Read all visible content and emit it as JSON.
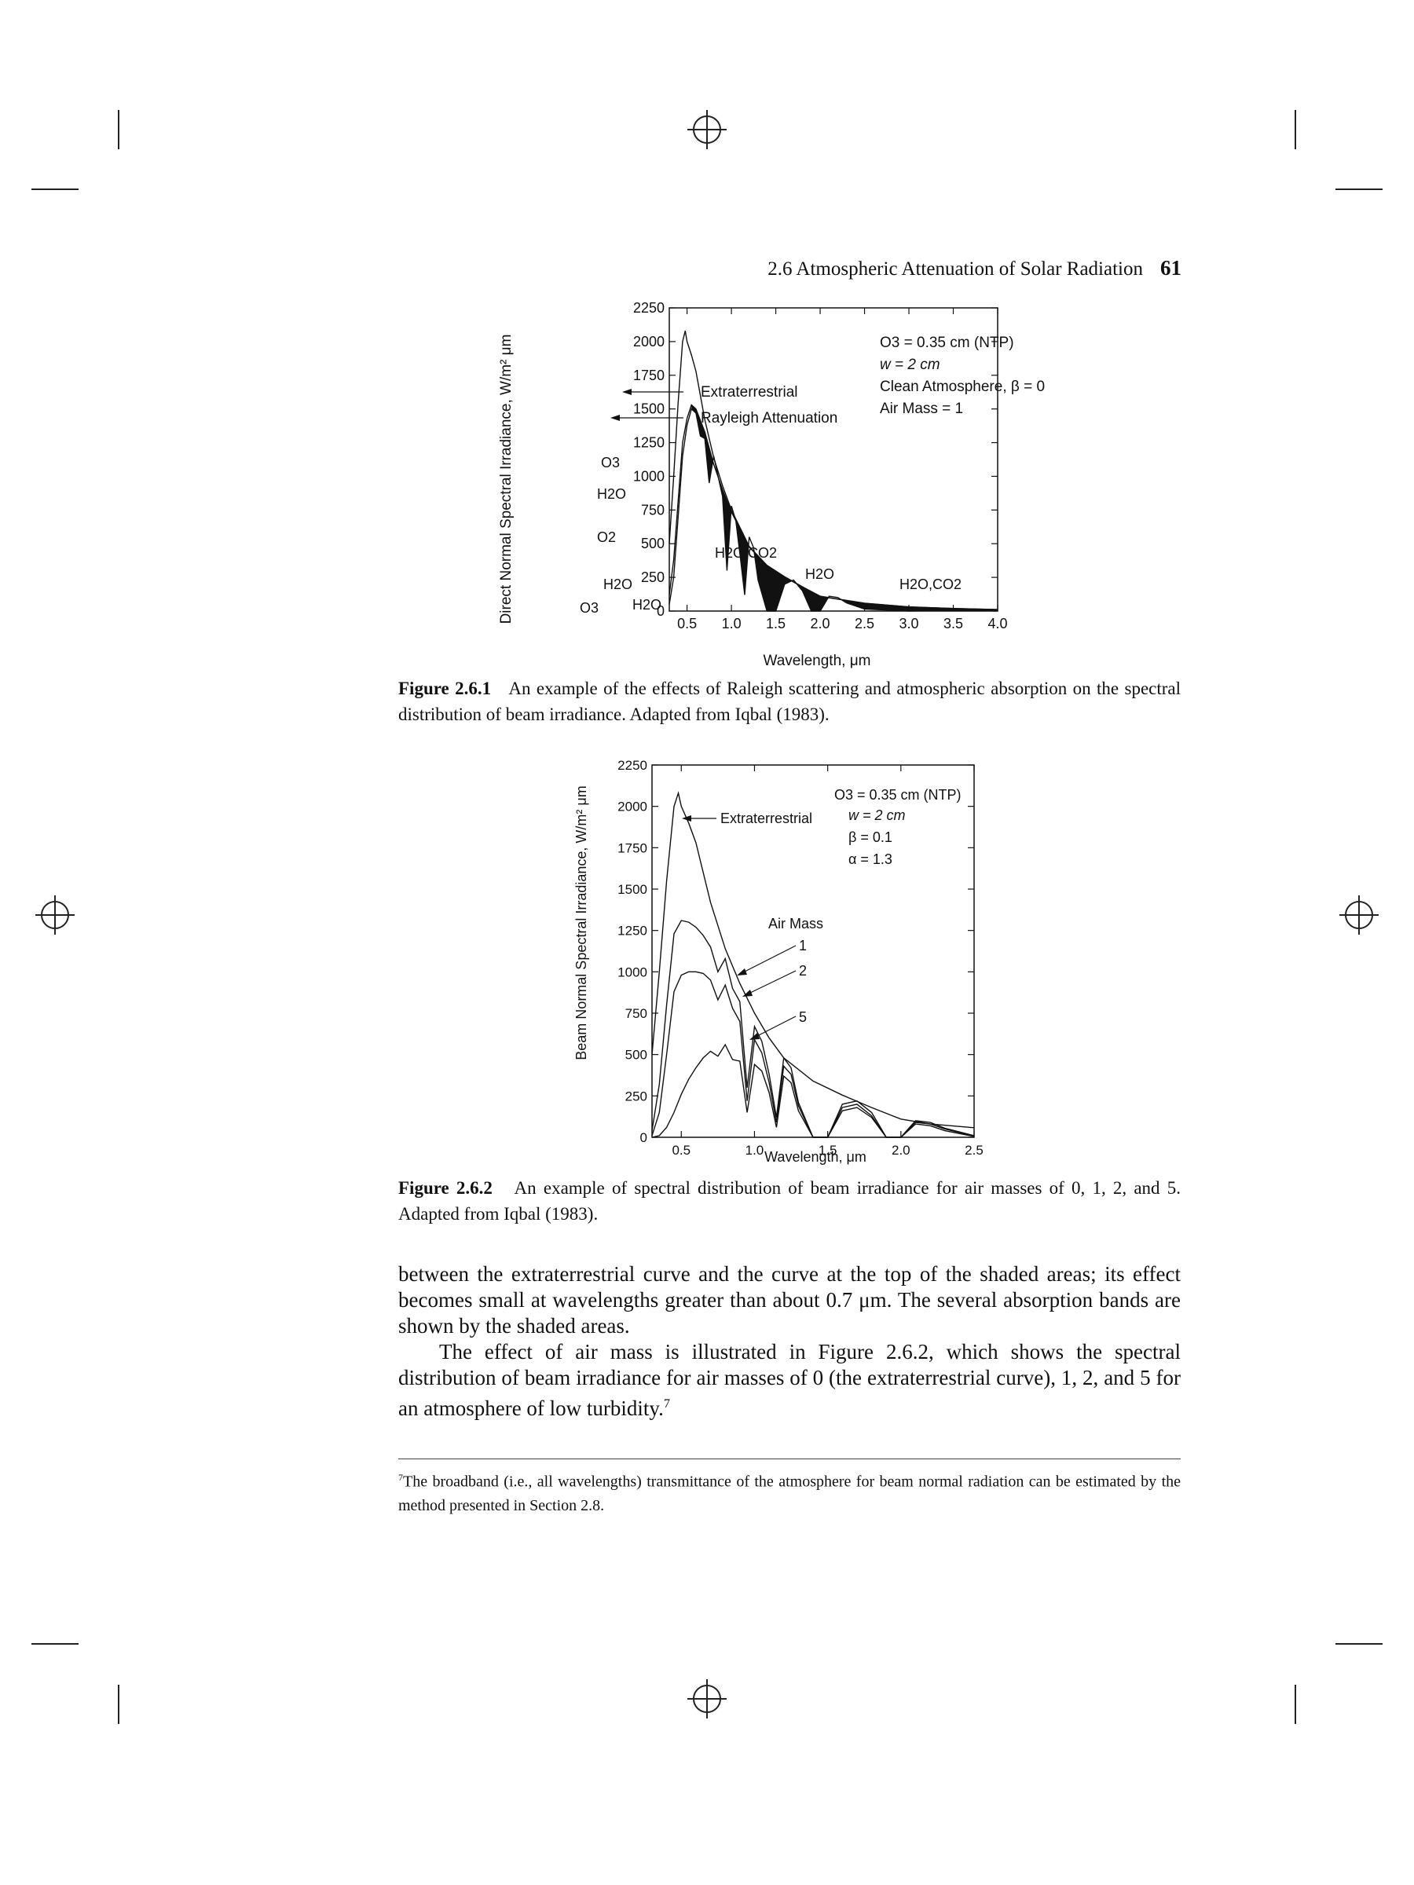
{
  "header": {
    "running_head": "2.6   Atmospheric Attenuation of Solar Radiation",
    "page_number": "61"
  },
  "figure1": {
    "caption_label": "Figure 2.6.1",
    "caption_text": "An example of the effects of Raleigh scattering and atmospheric absorption on the spectral distribution of beam irradiance. Adapted from Iqbal (1983).",
    "annotations": {
      "extraterrestrial": "Extraterrestrial",
      "rayleigh": "Rayleigh Attenuation",
      "legend_1": "O3 = 0.35 cm (NTP)",
      "legend_2": "w   = 2 cm",
      "legend_3": "Clean Atmosphere, β = 0",
      "legend_4": "Air Mass = 1"
    },
    "absorbers": [
      {
        "id": "o3_top",
        "label": "O3"
      },
      {
        "id": "h2o_a",
        "label": "H2O"
      },
      {
        "id": "o2",
        "label": "O2"
      },
      {
        "id": "h2o_co2_a",
        "label": "H2O,CO2"
      },
      {
        "id": "h2o_b",
        "label": "H2O"
      },
      {
        "id": "h2o_co2_b",
        "label": "H2O,CO2"
      },
      {
        "id": "h2o_c",
        "label": "H2O"
      },
      {
        "id": "o3_bottom",
        "label": "O3"
      },
      {
        "id": "h2o_d",
        "label": "H2O"
      }
    ]
  },
  "figure2": {
    "caption_label": "Figure 2.6.2",
    "caption_text": "An example of spectral distribution of beam irradiance for air masses of 0, 1, 2, and 5. Adapted from Iqbal (1983).",
    "annotations": {
      "extraterrestrial": "Extraterrestrial",
      "air_mass": "Air Mass",
      "am1": "1",
      "am2": "2",
      "am5": "5",
      "legend_1": "O3 = 0.35 cm (NTP)",
      "legend_2": "w  = 2 cm",
      "legend_3": "β  = 0.1",
      "legend_4": "α  = 1.3"
    }
  },
  "body": {
    "para1": "between the extraterrestrial curve and the curve at the top of the shaded areas; its effect becomes small at wavelengths greater than about 0.7 μm. The several absorption bands are shown by the shaded areas.",
    "para2": "The effect of air mass is illustrated in Figure 2.6.2, which shows the spectral distribution of beam irradiance for air masses of 0 (the extraterrestrial curve), 1, 2, and 5 for an atmosphere of low turbidity.",
    "para2_footnote_mark": "7"
  },
  "footnote": {
    "mark": "7",
    "text": "The broadband (i.e., all wavelengths) transmittance of the atmosphere for beam normal radiation can be estimated by the method presented in Section 2.8."
  },
  "chart_data": [
    {
      "type": "line",
      "title": "",
      "xlabel": "Wavelength, μm",
      "ylabel": "Direct Normal Spectral Irradiance, W/m² μm",
      "xlim": [
        0.3,
        4.0
      ],
      "ylim": [
        0,
        2250
      ],
      "xticks": [
        "0.5",
        "1.0",
        "1.5",
        "2.0",
        "2.5",
        "3.0",
        "3.5",
        "4.0"
      ],
      "yticks": [
        "0",
        "250",
        "500",
        "750",
        "1000",
        "1250",
        "1500",
        "1750",
        "2000",
        "2250"
      ],
      "grid": false,
      "legend": "top-right",
      "series": [
        {
          "name": "Extraterrestrial",
          "x": [
            0.3,
            0.35,
            0.4,
            0.45,
            0.48,
            0.5,
            0.55,
            0.6,
            0.7,
            0.8,
            0.9,
            1.0,
            1.2,
            1.4,
            1.6,
            1.8,
            2.0,
            2.5,
            3.0,
            3.5,
            4.0
          ],
          "y": [
            500,
            1000,
            1550,
            2000,
            2080,
            2000,
            1900,
            1780,
            1420,
            1140,
            930,
            750,
            480,
            340,
            255,
            180,
            110,
            58,
            31,
            19,
            11
          ]
        },
        {
          "name": "Rayleigh Attenuation",
          "x": [
            0.3,
            0.35,
            0.4,
            0.45,
            0.5,
            0.55,
            0.6,
            0.7,
            0.8,
            0.9,
            1.0,
            1.2,
            1.4,
            1.6,
            1.8,
            2.0,
            2.5,
            3.0,
            3.5,
            4.0
          ],
          "y": [
            120,
            380,
            820,
            1250,
            1430,
            1530,
            1500,
            1330,
            1090,
            900,
            735,
            475,
            337,
            252,
            178,
            109,
            57,
            31,
            19,
            11
          ]
        },
        {
          "name": "Air Mass 1",
          "x": [
            0.3,
            0.35,
            0.4,
            0.45,
            0.5,
            0.55,
            0.6,
            0.65,
            0.7,
            0.75,
            0.8,
            0.85,
            0.9,
            0.95,
            1.0,
            1.05,
            1.1,
            1.15,
            1.2,
            1.25,
            1.3,
            1.4,
            1.5,
            1.6,
            1.7,
            1.8,
            1.9,
            2.0,
            2.1,
            2.2,
            2.3,
            2.5,
            3.0,
            3.5,
            4.0
          ],
          "y": [
            50,
            250,
            700,
            1150,
            1380,
            1500,
            1470,
            1300,
            1280,
            950,
            1150,
            1000,
            850,
            300,
            780,
            670,
            400,
            120,
            550,
            470,
            230,
            0,
            0,
            200,
            230,
            150,
            0,
            0,
            110,
            100,
            60,
            15,
            0,
            5,
            5
          ]
        }
      ]
    },
    {
      "type": "line",
      "title": "",
      "xlabel": "Wavelength, μm",
      "ylabel": "Beam Normal Spectral Irradiance, W/m² μm",
      "xlim": [
        0.3,
        2.5
      ],
      "ylim": [
        0,
        2250
      ],
      "xticks": [
        "0.5",
        "1.0",
        "1.5",
        "2.0",
        "2.5"
      ],
      "yticks": [
        "0",
        "250",
        "500",
        "750",
        "1000",
        "1250",
        "1500",
        "1750",
        "2000",
        "2250"
      ],
      "grid": false,
      "legend": "top-right",
      "series": [
        {
          "name": "Extraterrestrial",
          "x": [
            0.3,
            0.35,
            0.4,
            0.45,
            0.48,
            0.5,
            0.55,
            0.6,
            0.7,
            0.8,
            0.9,
            1.0,
            1.1,
            1.2,
            1.4,
            1.6,
            1.8,
            2.0,
            2.2,
            2.5
          ],
          "y": [
            500,
            1000,
            1550,
            2000,
            2080,
            2000,
            1900,
            1780,
            1420,
            1140,
            930,
            750,
            600,
            480,
            340,
            255,
            180,
            110,
            80,
            58
          ]
        },
        {
          "name": "1",
          "x": [
            0.3,
            0.35,
            0.4,
            0.45,
            0.5,
            0.55,
            0.6,
            0.65,
            0.7,
            0.75,
            0.8,
            0.85,
            0.9,
            0.95,
            1.0,
            1.05,
            1.1,
            1.15,
            1.2,
            1.25,
            1.3,
            1.4,
            1.5,
            1.6,
            1.7,
            1.8,
            1.9,
            2.0,
            2.1,
            2.2,
            2.3,
            2.5
          ],
          "y": [
            40,
            320,
            800,
            1230,
            1310,
            1300,
            1270,
            1220,
            1150,
            1000,
            1080,
            900,
            820,
            300,
            670,
            580,
            380,
            120,
            480,
            420,
            210,
            0,
            0,
            200,
            220,
            150,
            0,
            0,
            100,
            90,
            55,
            10
          ]
        },
        {
          "name": "2",
          "x": [
            0.3,
            0.35,
            0.4,
            0.45,
            0.5,
            0.55,
            0.6,
            0.65,
            0.7,
            0.75,
            0.8,
            0.85,
            0.9,
            0.95,
            1.0,
            1.05,
            1.1,
            1.15,
            1.2,
            1.25,
            1.3,
            1.4,
            1.5,
            1.6,
            1.7,
            1.8,
            1.9,
            2.0,
            2.1,
            2.2,
            2.3,
            2.5
          ],
          "y": [
            10,
            150,
            500,
            880,
            980,
            1000,
            1000,
            990,
            950,
            830,
            920,
            780,
            700,
            220,
            590,
            510,
            330,
            90,
            430,
            380,
            190,
            0,
            0,
            180,
            200,
            130,
            0,
            0,
            90,
            80,
            50,
            8
          ]
        },
        {
          "name": "5",
          "x": [
            0.3,
            0.35,
            0.4,
            0.45,
            0.5,
            0.55,
            0.6,
            0.65,
            0.7,
            0.75,
            0.8,
            0.85,
            0.9,
            0.95,
            1.0,
            1.05,
            1.1,
            1.15,
            1.2,
            1.25,
            1.3,
            1.4,
            1.5,
            1.6,
            1.7,
            1.8,
            1.9,
            2.0,
            2.1,
            2.2,
            2.3,
            2.5
          ],
          "y": [
            0,
            10,
            60,
            150,
            260,
            350,
            420,
            480,
            520,
            490,
            560,
            470,
            460,
            150,
            440,
            400,
            270,
            60,
            370,
            330,
            160,
            0,
            0,
            160,
            180,
            120,
            0,
            0,
            80,
            70,
            40,
            5
          ]
        }
      ]
    }
  ]
}
